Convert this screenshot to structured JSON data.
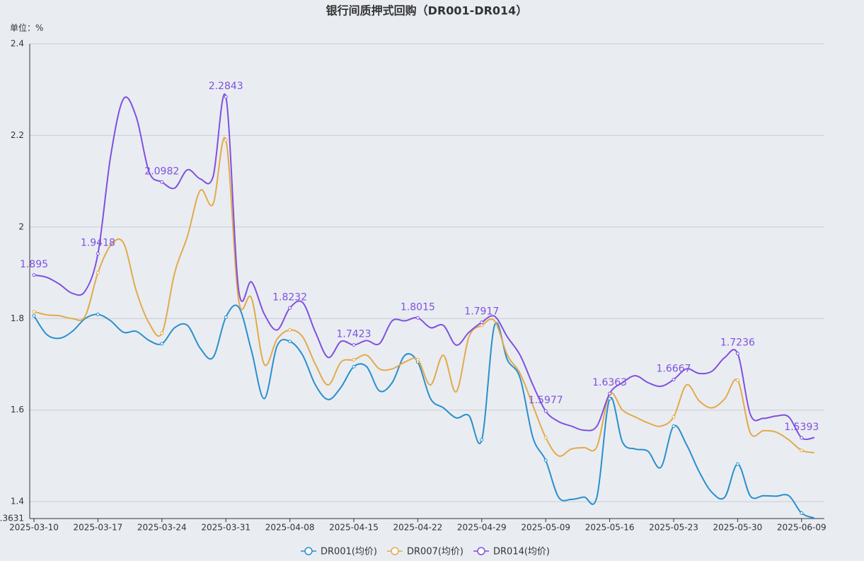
{
  "chart_data": {
    "type": "line",
    "title": "银行间质押式回购（DR001-DR014）",
    "unit_label": "单位：%",
    "categories": [
      "2025-03-10",
      null,
      null,
      null,
      null,
      "2025-03-17",
      null,
      null,
      null,
      null,
      "2025-03-24",
      null,
      null,
      null,
      null,
      "2025-03-31",
      null,
      null,
      null,
      null,
      "2025-04-08",
      null,
      null,
      null,
      null,
      "2025-04-15",
      null,
      null,
      null,
      null,
      "2025-04-22",
      null,
      null,
      null,
      null,
      "2025-04-29",
      null,
      null,
      null,
      null,
      "2025-05-09",
      null,
      null,
      null,
      null,
      "2025-05-16",
      null,
      null,
      null,
      null,
      "2025-05-23",
      null,
      null,
      null,
      null,
      "2025-05-30",
      null,
      null,
      null,
      null,
      "2025-06-09",
      null
    ],
    "series": [
      {
        "name": "DR001(均价)",
        "color": "#2a8fcc",
        "values": [
          1.806,
          1.765,
          1.757,
          1.772,
          1.8,
          1.809,
          1.795,
          1.77,
          1.772,
          1.752,
          1.745,
          1.78,
          1.785,
          1.735,
          1.715,
          1.803,
          1.825,
          1.73,
          1.625,
          1.74,
          1.75,
          1.72,
          1.655,
          1.623,
          1.65,
          1.695,
          1.695,
          1.642,
          1.66,
          1.72,
          1.705,
          1.625,
          1.605,
          1.583,
          1.588,
          1.535,
          1.785,
          1.71,
          1.67,
          1.54,
          1.49,
          1.41,
          1.405,
          1.41,
          1.41,
          1.625,
          1.53,
          1.515,
          1.51,
          1.475,
          1.565,
          1.525,
          1.465,
          1.42,
          1.41,
          1.482,
          1.412,
          1.413,
          1.412,
          1.413,
          1.375,
          1.364
        ]
      },
      {
        "name": "DR007(均价)",
        "color": "#e3aa4a",
        "values": [
          1.815,
          1.808,
          1.806,
          1.8,
          1.805,
          1.9,
          1.96,
          1.965,
          1.86,
          1.79,
          1.768,
          1.9,
          1.98,
          2.08,
          2.05,
          2.19,
          1.84,
          1.845,
          1.7,
          1.755,
          1.775,
          1.76,
          1.7,
          1.655,
          1.705,
          1.71,
          1.72,
          1.69,
          1.69,
          1.705,
          1.71,
          1.655,
          1.72,
          1.64,
          1.76,
          1.785,
          1.795,
          1.72,
          1.68,
          1.61,
          1.54,
          1.5,
          1.515,
          1.518,
          1.52,
          1.635,
          1.6,
          1.585,
          1.572,
          1.565,
          1.585,
          1.655,
          1.62,
          1.605,
          1.625,
          1.665,
          1.55,
          1.555,
          1.552,
          1.535,
          1.512,
          1.507
        ]
      },
      {
        "name": "DR014(均价)",
        "color": "#8050e0",
        "values": [
          1.895,
          1.89,
          1.875,
          1.855,
          1.86,
          1.9418,
          2.156,
          2.28,
          2.24,
          2.12,
          2.0982,
          2.085,
          2.125,
          2.105,
          2.11,
          2.2843,
          1.862,
          1.88,
          1.81,
          1.775,
          1.8232,
          1.835,
          1.77,
          1.715,
          1.75,
          1.7423,
          1.752,
          1.745,
          1.795,
          1.795,
          1.8015,
          1.78,
          1.785,
          1.742,
          1.77,
          1.7917,
          1.805,
          1.76,
          1.72,
          1.655,
          1.5977,
          1.575,
          1.565,
          1.556,
          1.565,
          1.6363,
          1.66,
          1.675,
          1.66,
          1.652,
          1.6667,
          1.69,
          1.68,
          1.685,
          1.715,
          1.7236,
          1.59,
          1.582,
          1.587,
          1.585,
          1.5393,
          1.54
        ]
      }
    ],
    "ylim": [
      1.3631,
      2.4
    ],
    "yticks": [
      {
        "value": 1.3631,
        "label": ".3631"
      },
      1.4,
      1.6,
      1.8,
      2,
      2.2,
      2.4
    ],
    "grid": true,
    "legend": "bottom"
  }
}
